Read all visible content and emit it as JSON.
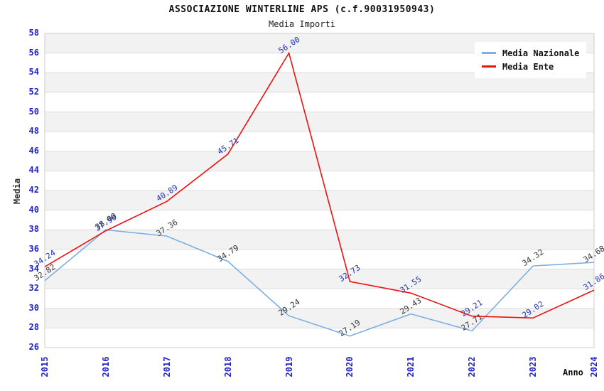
{
  "header": {
    "title": "ASSOCIAZIONE WINTERLINE APS (c.f.90031950943)",
    "subtitle": "Media Importi"
  },
  "chart_data": {
    "type": "line",
    "title": "ASSOCIAZIONE WINTERLINE APS (c.f.90031950943)",
    "subtitle": "Media Importi",
    "xlabel": "Anno",
    "ylabel": "Media",
    "categories": [
      "2015",
      "2016",
      "2017",
      "2018",
      "2019",
      "2020",
      "2021",
      "2022",
      "2023",
      "2024"
    ],
    "series": [
      {
        "name": "Media Nazionale",
        "color": "#7cb0e2",
        "label_color": "#333333",
        "values": [
          32.82,
          38.0,
          37.36,
          34.79,
          29.24,
          27.19,
          29.43,
          27.71,
          34.32,
          34.68
        ]
      },
      {
        "name": "Media Ente",
        "color": "#ee1111",
        "label_color": "#2233aa",
        "values": [
          34.24,
          37.9,
          40.89,
          45.71,
          56.0,
          32.73,
          31.55,
          29.21,
          29.02,
          31.86
        ]
      }
    ],
    "ylim": [
      26,
      58
    ],
    "ytick_step": 2,
    "grid": "horizontal-only",
    "band_colors": [
      "#f2f2f2",
      "#ffffff"
    ],
    "gridline_color": "#dddddd",
    "border_color": "#cccccc",
    "tick_label_color": "#2222cc",
    "legend_position": "top-right",
    "legend": [
      "Media Nazionale",
      "Media Ente"
    ]
  }
}
